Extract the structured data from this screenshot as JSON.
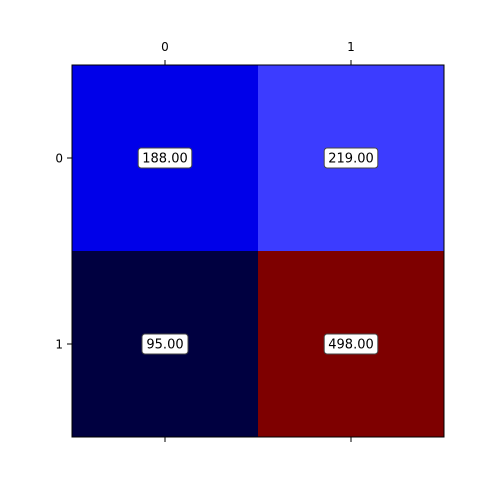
{
  "chart_data": {
    "type": "heatmap",
    "title": "",
    "xlabel": "",
    "ylabel": "",
    "x_ticks": [
      "0",
      "1"
    ],
    "y_ticks": [
      "0",
      "1"
    ],
    "x_ticks_position": "top",
    "values": [
      [
        188,
        219
      ],
      [
        95,
        498
      ]
    ],
    "cell_labels": [
      [
        "188.00",
        "219.00"
      ],
      [
        "95.00",
        "498.00"
      ]
    ],
    "cell_colors": [
      [
        "#0000e9",
        "#3c3cff"
      ],
      [
        "#000040",
        "#7e0000"
      ]
    ],
    "colormap": "seismic",
    "grid": false,
    "legend": "none"
  }
}
